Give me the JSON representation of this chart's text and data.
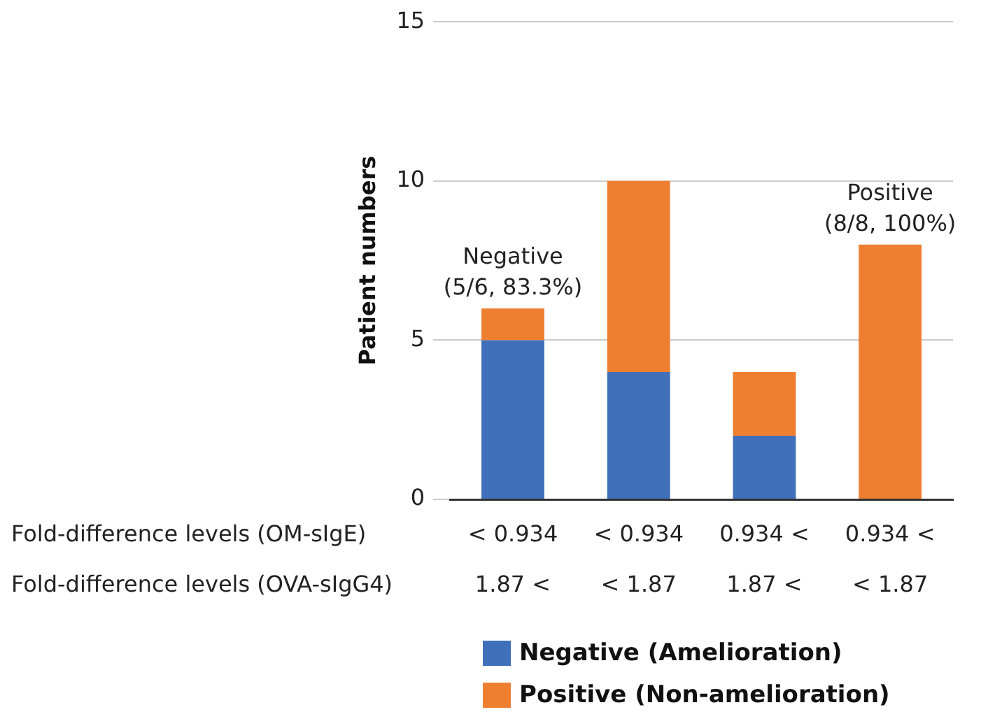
{
  "chart_data": {
    "type": "bar",
    "stacked": true,
    "ylabel": "Patient numbers",
    "categories": [
      "< 0.934\n1.87 <",
      "< 0.934\n< 1.87",
      "0.934 <\n1.87 <",
      "0.934 <\n< 1.87"
    ],
    "series": [
      {
        "name": "Negative (Amelioration)",
        "color": "#4070ba",
        "values": [
          5,
          4,
          2,
          0
        ]
      },
      {
        "name": "Positive (Non-amelioration)",
        "color": "#ee7f30",
        "values": [
          1,
          6,
          2,
          8
        ]
      }
    ],
    "ylim": [
      0,
      15
    ],
    "yticks": [
      0,
      5,
      10,
      15
    ],
    "grid": "y",
    "legend": "bottom",
    "annotations": [
      {
        "text": "Negative\n(5/6, 83.3%)",
        "x": "< 0.934\n1.87 <",
        "y": 6
      },
      {
        "text": "Positive\n(8/8, 100%)",
        "x": "0.934 <\n< 1.87",
        "y": 8
      },
      "Fold-difference levels (OM-sIgE)",
      "Fold-difference levels (OVA-sIgG4)"
    ]
  }
}
